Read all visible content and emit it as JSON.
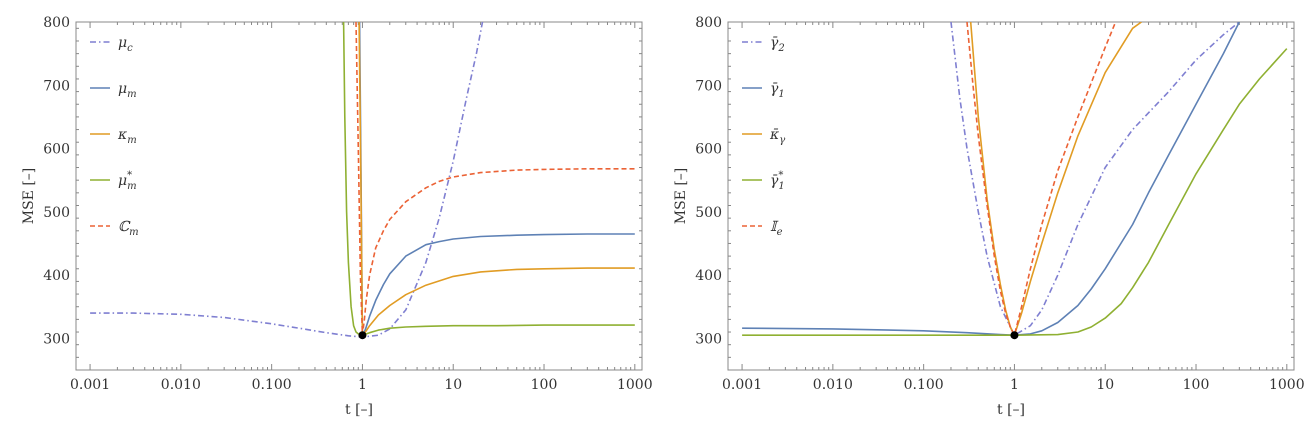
{
  "chart_data": [
    {
      "type": "line",
      "xlabel": "t [–]",
      "ylabel": "MSE [–]",
      "xscale": "log",
      "xlim": [
        0.0007,
        1200
      ],
      "ylim": [
        250,
        800
      ],
      "xticks": [
        0.001,
        0.01,
        0.1,
        1,
        10,
        100,
        1000
      ],
      "xtick_labels": [
        "0.001",
        "0.010",
        "0.100",
        "1",
        "10",
        "100",
        "1000"
      ],
      "yticks": [
        300,
        400,
        500,
        600,
        700,
        800
      ],
      "ytick_labels": [
        "300",
        "400",
        "500",
        "600",
        "700",
        "800"
      ],
      "grid": false,
      "legend_position": "top-left",
      "marker": {
        "x": 1,
        "y": 305
      },
      "series": [
        {
          "name": "μ_c",
          "label_main": "μ",
          "label_sub": "c",
          "label_sup": "",
          "color": "#7f7fd1",
          "dash": "dashdot",
          "x": [
            0.001,
            0.003,
            0.01,
            0.03,
            0.1,
            0.2,
            0.4,
            0.7,
            1,
            1.5,
            2,
            3,
            5,
            7,
            10,
            14,
            18,
            21
          ],
          "y": [
            340,
            340,
            338,
            333,
            323,
            316,
            309,
            304,
            302,
            305,
            315,
            345,
            420,
            490,
            580,
            680,
            750,
            800
          ]
        },
        {
          "name": "μ_m",
          "label_main": "μ",
          "label_sub": "m",
          "label_sup": "",
          "color": "#5e81b5",
          "dash": "solid",
          "x": [
            0.93,
            0.96,
            1,
            1.05,
            1.1,
            1.2,
            1.4,
            1.7,
            2,
            3,
            5,
            7,
            10,
            20,
            50,
            100,
            300,
            1000
          ],
          "y": [
            800,
            600,
            305,
            310,
            318,
            335,
            360,
            385,
            402,
            430,
            448,
            453,
            457,
            461,
            463,
            464,
            465,
            465
          ]
        },
        {
          "name": "κ_m",
          "label_main": "κ",
          "label_sub": "m",
          "label_sup": "",
          "color": "#e19c24",
          "dash": "solid",
          "x": [
            0.92,
            0.96,
            1,
            1.05,
            1.1,
            1.2,
            1.5,
            2,
            3,
            5,
            10,
            20,
            50,
            100,
            300,
            1000
          ],
          "y": [
            800,
            560,
            305,
            308,
            312,
            320,
            337,
            352,
            369,
            384,
            398,
            405,
            409,
            410,
            411,
            411
          ]
        },
        {
          "name": "μ*_m",
          "label_main": "μ",
          "label_sub": "m",
          "label_sup": "*",
          "color": "#8fb032",
          "dash": "solid",
          "x": [
            0.62,
            0.64,
            0.67,
            0.7,
            0.75,
            0.8,
            0.85,
            0.9,
            1,
            1.2,
            1.5,
            2,
            3,
            5,
            10,
            30,
            100,
            1000
          ],
          "y": [
            800,
            650,
            500,
            420,
            350,
            320,
            310,
            307,
            305,
            309,
            313,
            316,
            318,
            319,
            320,
            320,
            321,
            321
          ]
        },
        {
          "name": "ℂ_m",
          "label_main": "ℂ",
          "label_sub": "m",
          "label_sup": "",
          "color": "#eb6235",
          "dash": "dashed",
          "x": [
            0.85,
            0.9,
            0.95,
            1,
            1.05,
            1.1,
            1.2,
            1.4,
            1.7,
            2,
            3,
            5,
            7,
            10,
            20,
            50,
            100,
            300,
            1000
          ],
          "y": [
            800,
            600,
            400,
            305,
            330,
            360,
            400,
            443,
            470,
            488,
            516,
            538,
            548,
            555,
            562,
            566,
            567,
            568,
            568
          ]
        }
      ]
    },
    {
      "type": "line",
      "xlabel": "t [–]",
      "ylabel": "MSE [–]",
      "xscale": "log",
      "xlim": [
        0.0007,
        1200
      ],
      "ylim": [
        250,
        800
      ],
      "xticks": [
        0.001,
        0.01,
        0.1,
        1,
        10,
        100,
        1000
      ],
      "xtick_labels": [
        "0.001",
        "0.010",
        "0.100",
        "1",
        "10",
        "100",
        "1000"
      ],
      "yticks": [
        300,
        400,
        500,
        600,
        700,
        800
      ],
      "ytick_labels": [
        "300",
        "400",
        "500",
        "600",
        "700",
        "800"
      ],
      "grid": false,
      "legend_position": "top-left",
      "marker": {
        "x": 1,
        "y": 305
      },
      "series": [
        {
          "name": "γ̄_2",
          "label_main": "γ̄",
          "label_sub": "2",
          "label_sup": "",
          "color": "#7f7fd1",
          "dash": "dashdot",
          "x": [
            0.2,
            0.25,
            0.3,
            0.4,
            0.5,
            0.7,
            1,
            1.5,
            2,
            3,
            5,
            10,
            20,
            50,
            100,
            200,
            300
          ],
          "y": [
            800,
            680,
            600,
            500,
            430,
            350,
            305,
            320,
            345,
            400,
            480,
            570,
            630,
            690,
            740,
            780,
            800
          ]
        },
        {
          "name": "γ̄_1",
          "label_main": "γ̄",
          "label_sub": "1",
          "label_sup": "",
          "color": "#5e81b5",
          "dash": "solid",
          "x": [
            0.001,
            0.01,
            0.1,
            0.3,
            0.7,
            1,
            1.5,
            2,
            3,
            5,
            7,
            10,
            20,
            30,
            50,
            100,
            200,
            300
          ],
          "y": [
            316,
            315,
            312,
            309,
            306,
            305,
            307,
            312,
            325,
            352,
            378,
            410,
            480,
            530,
            590,
            670,
            750,
            800
          ]
        },
        {
          "name": "κ̄_γ",
          "label_main": "κ̄",
          "label_sub": "γ",
          "label_sup": "",
          "color": "#e19c24",
          "dash": "solid",
          "x": [
            0.33,
            0.4,
            0.5,
            0.6,
            0.7,
            0.8,
            0.9,
            1,
            1.2,
            1.5,
            2,
            3,
            5,
            10,
            20,
            25
          ],
          "y": [
            800,
            650,
            520,
            440,
            385,
            345,
            318,
            305,
            340,
            390,
            450,
            530,
            620,
            720,
            790,
            800
          ]
        },
        {
          "name": "γ̄*_1",
          "label_main": "γ̄",
          "label_sub": "1",
          "label_sup": "*",
          "color": "#8fb032",
          "dash": "solid",
          "x": [
            0.001,
            0.01,
            0.1,
            1,
            3,
            5,
            7,
            10,
            15,
            20,
            30,
            50,
            100,
            200,
            300,
            500,
            1000
          ],
          "y": [
            305,
            305,
            305,
            305,
            306,
            310,
            318,
            332,
            355,
            380,
            420,
            480,
            560,
            630,
            670,
            710,
            758
          ]
        },
        {
          "name": "𝕀_e",
          "label_main": "𝕀",
          "label_sub": "e",
          "label_sup": "",
          "color": "#eb6235",
          "dash": "dashed",
          "x": [
            0.3,
            0.35,
            0.4,
            0.5,
            0.6,
            0.7,
            0.8,
            0.9,
            1,
            1.2,
            1.5,
            2,
            3,
            5,
            10,
            13
          ],
          "y": [
            800,
            700,
            620,
            510,
            430,
            375,
            340,
            318,
            305,
            350,
            410,
            480,
            565,
            650,
            760,
            800
          ]
        }
      ]
    }
  ]
}
